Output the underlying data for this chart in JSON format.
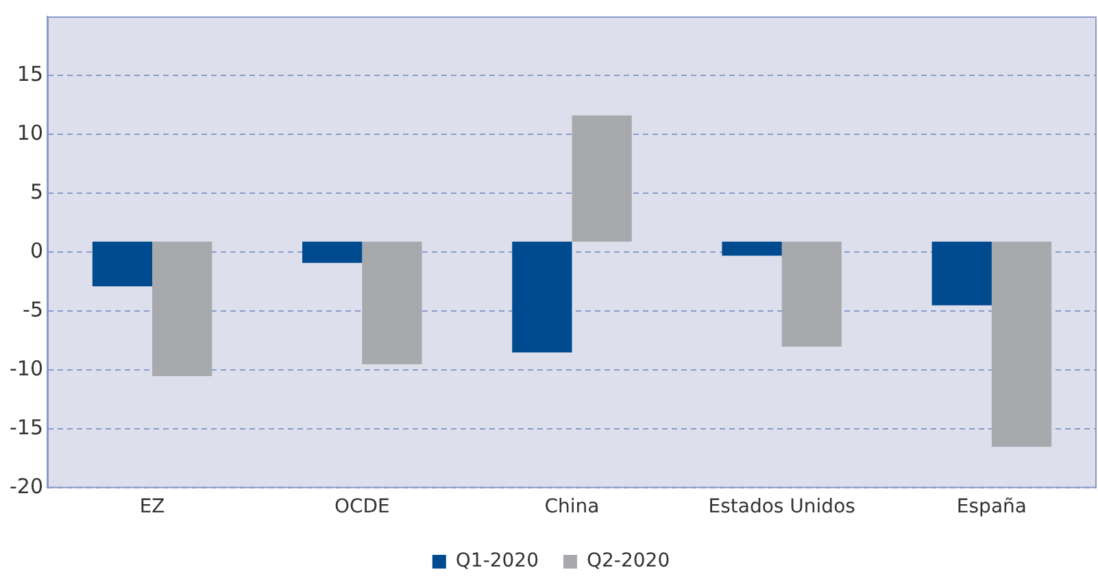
{
  "chart_data": {
    "type": "bar",
    "categories": [
      "EZ",
      "OCDE",
      "China",
      "Estados Unidos",
      "España"
    ],
    "series": [
      {
        "name": "Q1-2020",
        "color": "#004a8f",
        "values": [
          -3.8,
          -1.8,
          -9.4,
          -1.2,
          -5.4
        ],
        "base": [
          0.9,
          0.9,
          0.9,
          0.9,
          0.9
        ]
      },
      {
        "name": "Q2-2020",
        "color": "#a8a9ad",
        "values": [
          -11.4,
          -10.4,
          10.7,
          -8.9,
          -17.4
        ],
        "base": [
          0.9,
          0.9,
          0.9,
          0.9,
          0.9
        ]
      }
    ],
    "ylim": [
      -20,
      20
    ],
    "yticks": [
      -20,
      -15,
      -10,
      -5,
      0,
      5,
      10,
      15
    ],
    "grid": "y",
    "legend": "bottom"
  }
}
